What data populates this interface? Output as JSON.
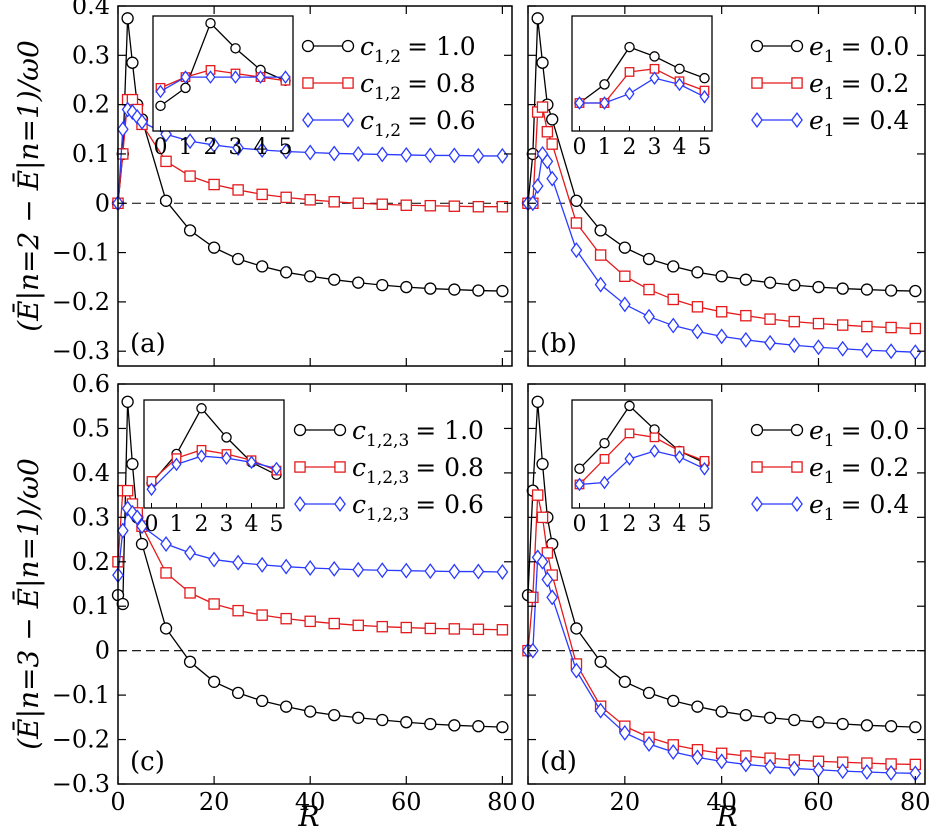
{
  "figure": {
    "xlabel": "R",
    "ylabel_top": "(Ē|n=2 − Ē|n=1)/ω0",
    "ylabel_bottom": "(Ē|n=3 − Ē|n=1)/ω0",
    "colors": {
      "black": "#000000",
      "red": "#e41a1c",
      "blue": "#2a3bff"
    }
  },
  "chart_data": [
    {
      "id": "a",
      "panel_label": "(a)",
      "type": "line",
      "xlim": [
        0,
        82
      ],
      "ylim": [
        -0.33,
        0.4
      ],
      "xticks": [
        0,
        20,
        40,
        60,
        80
      ],
      "yticks": [
        0.4,
        0.3,
        0.2,
        0.1,
        0,
        -0.1,
        -0.2,
        -0.3
      ],
      "yticklabels": [
        "0.4",
        "0.3",
        "0.2",
        "0.1",
        "0",
        "−0.1",
        "−0.2",
        "−0.3"
      ],
      "show_yticklabels": true,
      "show_xticklabels": false,
      "zero_line": true,
      "x": [
        0,
        1,
        2,
        3,
        4,
        5,
        10,
        15,
        20,
        25,
        30,
        35,
        40,
        45,
        50,
        55,
        60,
        65,
        70,
        75,
        80
      ],
      "series": [
        {
          "name": "c1,2 = 1.0",
          "legend_var": "c",
          "legend_sub": "1,2",
          "legend_val": "= 1.0",
          "color": "black",
          "marker": "circle",
          "values": [
            0,
            0.1,
            0.375,
            0.285,
            0.2,
            0.17,
            0.005,
            -0.055,
            -0.09,
            -0.113,
            -0.128,
            -0.14,
            -0.148,
            -0.155,
            -0.161,
            -0.166,
            -0.17,
            -0.173,
            -0.175,
            -0.177,
            -0.178
          ]
        },
        {
          "name": "c1,2 = 0.8",
          "legend_var": "c",
          "legend_sub": "1,2",
          "legend_val": "= 0.8",
          "color": "red",
          "marker": "square",
          "values": [
            0,
            0.1,
            0.21,
            0.21,
            0.19,
            0.16,
            0.085,
            0.055,
            0.038,
            0.027,
            0.018,
            0.012,
            0.007,
            0.003,
            0.0,
            -0.002,
            -0.004,
            -0.005,
            -0.006,
            -0.007,
            -0.007
          ]
        },
        {
          "name": "c1,2 = 0.6",
          "legend_var": "c",
          "legend_sub": "1,2",
          "legend_val": "= 0.6",
          "color": "blue",
          "marker": "diamond",
          "values": [
            0,
            0.15,
            0.19,
            0.185,
            0.175,
            0.165,
            0.14,
            0.126,
            0.118,
            0.112,
            0.108,
            0.105,
            0.103,
            0.101,
            0.1,
            0.099,
            0.098,
            0.097,
            0.097,
            0.096,
            0.096
          ]
        }
      ],
      "inset": {
        "xlim": [
          -0.3,
          5.3
        ],
        "ylim": [
          0.1,
          0.42
        ],
        "xticks": [
          0,
          1,
          2,
          3,
          4,
          5
        ],
        "x": [
          0,
          1,
          2,
          3,
          4,
          5
        ],
        "values": [
          [
            0.17,
            0.22,
            0.4,
            0.33,
            0.27,
            0.24
          ],
          [
            0.22,
            0.25,
            0.27,
            0.26,
            0.25,
            0.24
          ],
          [
            0.21,
            0.25,
            0.25,
            0.25,
            0.25,
            0.25
          ]
        ]
      }
    },
    {
      "id": "b",
      "panel_label": "(b)",
      "type": "line",
      "xlim": [
        0,
        82
      ],
      "ylim": [
        -0.33,
        0.4
      ],
      "xticks": [
        0,
        20,
        40,
        60,
        80
      ],
      "yticks": [
        0.4,
        0.3,
        0.2,
        0.1,
        0,
        -0.1,
        -0.2,
        -0.3
      ],
      "show_yticklabels": false,
      "show_xticklabels": false,
      "zero_line": true,
      "x": [
        0,
        1,
        2,
        3,
        4,
        5,
        10,
        15,
        20,
        25,
        30,
        35,
        40,
        45,
        50,
        55,
        60,
        65,
        70,
        75,
        80
      ],
      "series": [
        {
          "name": "e1 = 0.0",
          "legend_var": "e",
          "legend_sub": "1",
          "legend_val": "= 0.0",
          "color": "black",
          "marker": "circle",
          "values": [
            0,
            0.1,
            0.375,
            0.285,
            0.2,
            0.17,
            0.005,
            -0.055,
            -0.09,
            -0.113,
            -0.128,
            -0.14,
            -0.148,
            -0.155,
            -0.161,
            -0.166,
            -0.17,
            -0.173,
            -0.175,
            -0.177,
            -0.178
          ]
        },
        {
          "name": "e1 = 0.2",
          "legend_var": "e",
          "legend_sub": "1",
          "legend_val": "= 0.2",
          "color": "red",
          "marker": "square",
          "values": [
            0,
            0.0,
            0.185,
            0.195,
            0.145,
            0.12,
            -0.04,
            -0.105,
            -0.148,
            -0.175,
            -0.195,
            -0.21,
            -0.22,
            -0.228,
            -0.235,
            -0.24,
            -0.244,
            -0.247,
            -0.25,
            -0.252,
            -0.254
          ]
        },
        {
          "name": "e1 = 0.4",
          "legend_var": "e",
          "legend_sub": "1",
          "legend_val": "= 0.4",
          "color": "blue",
          "marker": "diamond",
          "values": [
            0,
            0.0,
            0.035,
            0.1,
            0.085,
            0.05,
            -0.095,
            -0.165,
            -0.205,
            -0.23,
            -0.248,
            -0.26,
            -0.27,
            -0.277,
            -0.283,
            -0.288,
            -0.292,
            -0.295,
            -0.298,
            -0.3,
            -0.302
          ]
        }
      ],
      "inset": {
        "xlim": [
          -0.3,
          5.3
        ],
        "ylim": [
          0.05,
          0.42
        ],
        "xticks": [
          0,
          1,
          2,
          3,
          4,
          5
        ],
        "x": [
          0,
          1,
          2,
          3,
          4,
          5
        ],
        "values": [
          [
            0.14,
            0.2,
            0.32,
            0.29,
            0.25,
            0.22
          ],
          [
            0.14,
            0.14,
            0.24,
            0.25,
            0.21,
            0.18
          ],
          [
            0.14,
            0.14,
            0.17,
            0.22,
            0.2,
            0.16
          ]
        ]
      }
    },
    {
      "id": "c",
      "panel_label": "(c)",
      "type": "line",
      "xlim": [
        0,
        82
      ],
      "ylim": [
        -0.3,
        0.6
      ],
      "xticks": [
        0,
        20,
        40,
        60,
        80
      ],
      "xticklabels": [
        "0",
        "20",
        "40",
        "60",
        "80"
      ],
      "yticks": [
        0.6,
        0.5,
        0.4,
        0.3,
        0.2,
        0.1,
        0,
        -0.1,
        -0.2,
        -0.3
      ],
      "yticklabels": [
        "0.6",
        "0.5",
        "0.4",
        "0.3",
        "0.2",
        "0.1",
        "0",
        "−0.1",
        "−0.2",
        "−0.3"
      ],
      "show_yticklabels": true,
      "show_xticklabels": true,
      "zero_line": true,
      "x": [
        0,
        1,
        2,
        3,
        4,
        5,
        10,
        15,
        20,
        25,
        30,
        35,
        40,
        45,
        50,
        55,
        60,
        65,
        70,
        75,
        80
      ],
      "series": [
        {
          "name": "c1,2,3 = 1.0",
          "legend_var": "c",
          "legend_sub": "1,2,3",
          "legend_val": "= 1.0",
          "color": "black",
          "marker": "circle",
          "values": [
            0.125,
            0.105,
            0.56,
            0.42,
            0.3,
            0.24,
            0.05,
            -0.025,
            -0.07,
            -0.095,
            -0.113,
            -0.126,
            -0.137,
            -0.145,
            -0.151,
            -0.156,
            -0.161,
            -0.165,
            -0.168,
            -0.17,
            -0.172
          ]
        },
        {
          "name": "c1,2,3 = 0.8",
          "legend_var": "c",
          "legend_sub": "1,2,3",
          "legend_val": "= 0.8",
          "color": "red",
          "marker": "square",
          "values": [
            0.2,
            0.36,
            0.36,
            0.33,
            0.31,
            0.28,
            0.175,
            0.13,
            0.105,
            0.09,
            0.08,
            0.072,
            0.066,
            0.061,
            0.057,
            0.054,
            0.052,
            0.05,
            0.049,
            0.048,
            0.047
          ]
        },
        {
          "name": "c1,2,3 = 0.6",
          "legend_var": "c",
          "legend_sub": "1,2,3",
          "legend_val": "= 0.6",
          "color": "blue",
          "marker": "diamond",
          "values": [
            0.17,
            0.27,
            0.32,
            0.31,
            0.3,
            0.28,
            0.24,
            0.22,
            0.205,
            0.198,
            0.193,
            0.189,
            0.186,
            0.184,
            0.182,
            0.181,
            0.18,
            0.179,
            0.178,
            0.178,
            0.177
          ]
        }
      ],
      "inset": {
        "xlim": [
          -0.3,
          5.3
        ],
        "ylim": [
          0.08,
          0.6
        ],
        "xticks": [
          0,
          1,
          2,
          3,
          4,
          5
        ],
        "x": [
          0,
          1,
          2,
          3,
          4,
          5
        ],
        "values": [
          [
            0.2,
            0.34,
            0.56,
            0.42,
            0.3,
            0.24
          ],
          [
            0.21,
            0.32,
            0.36,
            0.34,
            0.31,
            0.26
          ],
          [
            0.17,
            0.29,
            0.33,
            0.32,
            0.3,
            0.27
          ]
        ]
      }
    },
    {
      "id": "d",
      "panel_label": "(d)",
      "type": "line",
      "xlim": [
        0,
        82
      ],
      "ylim": [
        -0.3,
        0.6
      ],
      "xticks": [
        0,
        20,
        40,
        60,
        80
      ],
      "xticklabels": [
        "0",
        "20",
        "40",
        "60",
        "80"
      ],
      "yticks": [
        0.6,
        0.5,
        0.4,
        0.3,
        0.2,
        0.1,
        0,
        -0.1,
        -0.2,
        -0.3
      ],
      "show_yticklabels": false,
      "show_xticklabels": true,
      "zero_line": true,
      "x": [
        0,
        1,
        2,
        3,
        4,
        5,
        10,
        15,
        20,
        25,
        30,
        35,
        40,
        45,
        50,
        55,
        60,
        65,
        70,
        75,
        80
      ],
      "series": [
        {
          "name": "e1 = 0.0",
          "legend_var": "e",
          "legend_sub": "1",
          "legend_val": "= 0.0",
          "color": "black",
          "marker": "circle",
          "values": [
            0.125,
            0.36,
            0.56,
            0.42,
            0.3,
            0.24,
            0.05,
            -0.025,
            -0.07,
            -0.095,
            -0.113,
            -0.126,
            -0.137,
            -0.145,
            -0.151,
            -0.156,
            -0.161,
            -0.165,
            -0.168,
            -0.17,
            -0.172
          ]
        },
        {
          "name": "e1 = 0.2",
          "legend_var": "e",
          "legend_sub": "1",
          "legend_val": "= 0.2",
          "color": "red",
          "marker": "square",
          "values": [
            0,
            0.12,
            0.35,
            0.3,
            0.22,
            0.17,
            -0.03,
            -0.125,
            -0.17,
            -0.195,
            -0.212,
            -0.223,
            -0.231,
            -0.237,
            -0.242,
            -0.246,
            -0.249,
            -0.251,
            -0.253,
            -0.255,
            -0.256
          ]
        },
        {
          "name": "e1 = 0.4",
          "legend_var": "e",
          "legend_sub": "1",
          "legend_val": "= 0.4",
          "color": "blue",
          "marker": "diamond",
          "values": [
            0,
            0.0,
            0.21,
            0.2,
            0.16,
            0.12,
            -0.045,
            -0.135,
            -0.185,
            -0.21,
            -0.228,
            -0.24,
            -0.249,
            -0.256,
            -0.261,
            -0.265,
            -0.268,
            -0.271,
            -0.273,
            -0.275,
            -0.276
          ]
        }
      ],
      "inset": {
        "xlim": [
          -0.3,
          5.3
        ],
        "ylim": [
          0.05,
          0.6
        ],
        "xticks": [
          0,
          1,
          2,
          3,
          4,
          5
        ],
        "x": [
          0,
          1,
          2,
          3,
          4,
          5
        ],
        "values": [
          [
            0.25,
            0.38,
            0.57,
            0.45,
            0.34,
            0.28
          ],
          [
            0.17,
            0.3,
            0.43,
            0.41,
            0.34,
            0.29
          ],
          [
            0.17,
            0.18,
            0.3,
            0.34,
            0.31,
            0.25
          ]
        ]
      }
    }
  ]
}
